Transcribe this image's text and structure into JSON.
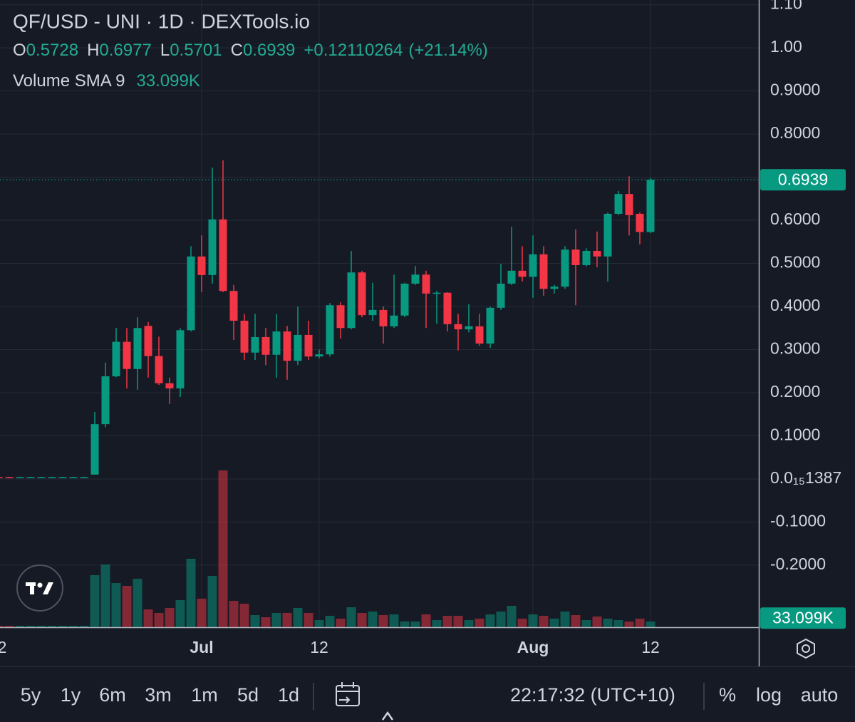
{
  "header": {
    "symbol": "QF/USD - UNI · 1D · DEXTools.io",
    "open_label": "O",
    "high_label": "H",
    "low_label": "L",
    "close_label": "C",
    "change": "+0.12110264",
    "change_pct": "(+21.14%)",
    "volume_label": "Volume SMA 9"
  },
  "toolbar": {
    "ranges": [
      "5y",
      "1y",
      "6m",
      "3m",
      "1m",
      "5d",
      "1d"
    ],
    "time": "22:17:32 (UTC+10)",
    "options": [
      "%",
      "log",
      "auto"
    ]
  },
  "chart_data": {
    "type": "candlestick",
    "categories": [
      "2",
      null,
      null,
      null,
      null,
      null,
      null,
      null,
      null,
      null,
      null,
      null,
      null,
      null,
      null,
      null,
      null,
      null,
      null,
      "Jul",
      null,
      null,
      null,
      null,
      null,
      null,
      null,
      null,
      null,
      null,
      "12",
      null,
      null,
      null,
      null,
      null,
      null,
      null,
      null,
      null,
      null,
      null,
      null,
      null,
      null,
      null,
      null,
      null,
      null,
      null,
      "Aug",
      null,
      null,
      null,
      null,
      null,
      null,
      null,
      null,
      null,
      null,
      "12"
    ],
    "open": [
      0.004,
      0.004,
      0.003,
      0.003,
      0.003,
      0.003,
      0.003,
      0.003,
      0.003,
      0.01,
      0.127,
      0.238,
      0.318,
      0.255,
      0.355,
      0.285,
      0.222,
      0.21,
      0.345,
      0.516,
      0.473,
      0.602,
      0.436,
      0.367,
      0.293,
      0.329,
      0.288,
      0.342,
      0.274,
      0.334,
      0.284,
      0.289,
      0.403,
      0.35,
      0.479,
      0.38,
      0.392,
      0.354,
      0.379,
      0.453,
      0.474,
      0.43,
      0.432,
      0.359,
      0.347,
      0.354,
      0.314,
      0.397,
      0.453,
      0.483,
      0.469,
      0.521,
      0.441,
      0.446,
      0.532,
      0.496,
      0.529,
      0.516,
      0.615,
      0.661,
      0.615,
      0.5728
    ],
    "high": [
      0.005,
      0.005,
      0.005,
      0.005,
      0.005,
      0.005,
      0.005,
      0.005,
      0.005,
      0.155,
      0.27,
      0.35,
      0.35,
      0.375,
      0.364,
      0.33,
      0.235,
      0.35,
      0.54,
      0.565,
      0.722,
      0.739,
      0.45,
      0.383,
      0.383,
      0.35,
      0.383,
      0.355,
      0.4,
      0.367,
      0.3,
      0.408,
      0.41,
      0.529,
      0.483,
      0.455,
      0.4,
      0.474,
      0.455,
      0.494,
      0.483,
      0.436,
      0.433,
      0.383,
      0.405,
      0.383,
      0.4,
      0.499,
      0.585,
      0.54,
      0.565,
      0.54,
      0.45,
      0.54,
      0.579,
      0.535,
      0.574,
      0.618,
      0.668,
      0.702,
      0.618,
      0.6977
    ],
    "low": [
      0.002,
      0.002,
      0.002,
      0.002,
      0.002,
      0.002,
      0.002,
      0.002,
      0.002,
      0.01,
      0.12,
      0.236,
      0.21,
      0.207,
      0.235,
      0.218,
      0.174,
      0.19,
      0.342,
      0.433,
      0.453,
      0.433,
      0.322,
      0.276,
      0.276,
      0.264,
      0.235,
      0.23,
      0.264,
      0.276,
      0.28,
      0.284,
      0.326,
      0.347,
      0.375,
      0.367,
      0.314,
      0.35,
      0.375,
      0.45,
      0.35,
      0.36,
      0.342,
      0.298,
      0.34,
      0.309,
      0.304,
      0.392,
      0.45,
      0.458,
      0.42,
      0.425,
      0.43,
      0.441,
      0.403,
      0.493,
      0.491,
      0.458,
      0.612,
      0.565,
      0.544,
      0.5701
    ],
    "close": [
      0.003,
      0.003,
      0.004,
      0.004,
      0.004,
      0.004,
      0.004,
      0.004,
      0.004,
      0.127,
      0.238,
      0.318,
      0.255,
      0.35,
      0.285,
      0.222,
      0.21,
      0.345,
      0.516,
      0.473,
      0.602,
      0.436,
      0.367,
      0.293,
      0.329,
      0.288,
      0.342,
      0.274,
      0.334,
      0.284,
      0.289,
      0.403,
      0.35,
      0.479,
      0.38,
      0.392,
      0.354,
      0.379,
      0.453,
      0.474,
      0.43,
      0.432,
      0.359,
      0.347,
      0.354,
      0.314,
      0.397,
      0.453,
      0.483,
      0.469,
      0.521,
      0.441,
      0.446,
      0.532,
      0.496,
      0.529,
      0.516,
      0.615,
      0.661,
      0.612,
      0.5728,
      0.6939
    ],
    "volume": [
      5200,
      5200,
      5200,
      5200,
      5200,
      5200,
      5200,
      5200,
      5200,
      189800,
      228800,
      161200,
      150800,
      176800,
      65000,
      52000,
      70200,
      98800,
      249600,
      104000,
      187200,
      572000,
      96200,
      85800,
      44200,
      36400,
      52000,
      52000,
      70200,
      52000,
      26000,
      41600,
      31200,
      72800,
      52000,
      57200,
      44200,
      46800,
      20800,
      20800,
      46800,
      26000,
      41600,
      41600,
      26000,
      31200,
      46800,
      57200,
      78000,
      31200,
      46800,
      41600,
      31200,
      57200,
      44200,
      26000,
      39000,
      31200,
      26000,
      20800,
      31200,
      20800
    ],
    "volume_sma": 33099,
    "volume_sma_label": "33.099K",
    "up_color": "#089981",
    "down_color": "#f23645",
    "ylim": [
      -0.344,
      1.111
    ],
    "yticks": [
      {
        "value": 1.1,
        "label": "1.10"
      },
      {
        "value": 1,
        "label": "1.00"
      },
      {
        "value": 0.9,
        "label": "0.9000"
      },
      {
        "value": 0.8,
        "label": "0.8000"
      },
      {
        "value": 0.7,
        "label": "0.7000"
      },
      {
        "value": 0.6,
        "label": "0.6000"
      },
      {
        "value": 0.5,
        "label": "0.5000"
      },
      {
        "value": 0.4,
        "label": "0.4000"
      },
      {
        "value": 0.3,
        "label": "0.3000"
      },
      {
        "value": 0.2,
        "label": "0.2000"
      },
      {
        "value": 0.1,
        "label": "0.1000"
      },
      {
        "value": 1.387e-16,
        "label": "0.0₁₅1387"
      },
      {
        "value": -0.1,
        "label": "-0.1000"
      },
      {
        "value": -0.2,
        "label": "-0.2000"
      }
    ],
    "grid": true
  }
}
